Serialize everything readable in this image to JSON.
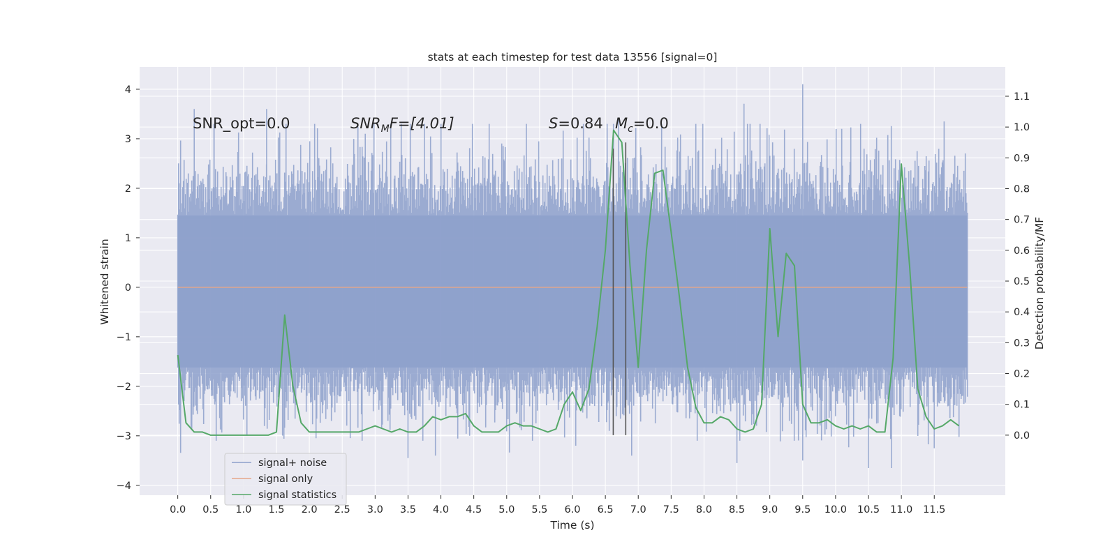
{
  "chart_data": {
    "type": "line",
    "title": "stats at each timestep for test data 13556 [signal=0]",
    "xlabel": "Time (s)",
    "ylabel": "Whitened strain",
    "ylabel_right": "Detection probability/MF",
    "xlim": [
      -0.58,
      12.58
    ],
    "ylim_left": [
      -4.2,
      4.45
    ],
    "ylim_right": [
      -0.195,
      1.195
    ],
    "x_ticks": [
      "0.0",
      "0.5",
      "1.0",
      "1.5",
      "2.0",
      "2.5",
      "3.0",
      "3.5",
      "4.0",
      "4.5",
      "5.0",
      "5.5",
      "6.0",
      "6.5",
      "7.0",
      "7.5",
      "8.0",
      "8.5",
      "9.0",
      "9.5",
      "10.0",
      "10.5",
      "11.0",
      "11.5"
    ],
    "y_ticks_left": [
      "4",
      "3",
      "2",
      "1",
      "0",
      "−1",
      "−2",
      "−3",
      "−4"
    ],
    "y_ticks_right": [
      "1.1",
      "1.0",
      "0.9",
      "0.8",
      "0.7",
      "0.6",
      "0.5",
      "0.4",
      "0.3",
      "0.2",
      "0.1",
      "0.0"
    ],
    "annotations": {
      "snr_opt": "SNR_opt=0.0",
      "snr_mf_pre": "SNR",
      "snr_mf_sub": "M",
      "snr_mf_post": "F=[4.01]",
      "s_label": "S",
      "s_value": "=0.84",
      "mc_label": "M",
      "mc_sub": "c",
      "mc_value": "=0.0"
    },
    "legend": {
      "position": "lower-left",
      "entries": [
        "signal+ noise",
        "signal only",
        "signal statistics"
      ]
    },
    "colors": {
      "noise": "#8da0cb",
      "signal_only": "#e5a68a",
      "statistics": "#55a868",
      "marker": "#555555",
      "background": "#eaeaf2",
      "grid": "#ffffff"
    },
    "series": [
      {
        "name": "signal+ noise",
        "axis": "left",
        "x_range": [
          0.0,
          12.0
        ],
        "typical_max": 1.45,
        "typical_min": -1.62,
        "notable_peaks": [
          {
            "x": 0.25,
            "y": 3.6
          },
          {
            "x": 0.55,
            "y": 3.3
          },
          {
            "x": 1.35,
            "y": 3.6
          },
          {
            "x": 2.85,
            "y": 3.1
          },
          {
            "x": 3.75,
            "y": 3.3
          },
          {
            "x": 5.3,
            "y": 3.3
          },
          {
            "x": 6.7,
            "y": 3.4
          },
          {
            "x": 8.7,
            "y": 3.3
          },
          {
            "x": 9.5,
            "y": 4.1
          },
          {
            "x": 11.65,
            "y": 3.35
          }
        ],
        "notable_troughs": [
          {
            "x": 3.5,
            "y": -3.45
          },
          {
            "x": 6.05,
            "y": -3.2
          },
          {
            "x": 6.9,
            "y": -3.4
          },
          {
            "x": 8.5,
            "y": -3.55
          },
          {
            "x": 9.5,
            "y": -3.5
          },
          {
            "x": 10.5,
            "y": -3.65
          },
          {
            "x": 10.85,
            "y": -3.65
          },
          {
            "x": 11.5,
            "y": -3.25
          }
        ]
      },
      {
        "name": "signal only",
        "axis": "left",
        "x": [
          0.0,
          12.0
        ],
        "values": [
          0.0,
          0.0
        ]
      },
      {
        "name": "signal statistics",
        "axis": "right",
        "x": [
          0.0,
          0.125,
          0.25,
          0.375,
          0.5,
          0.625,
          0.75,
          0.875,
          1.0,
          1.125,
          1.25,
          1.375,
          1.5,
          1.625,
          1.75,
          1.875,
          2.0,
          2.125,
          2.25,
          2.375,
          2.5,
          2.625,
          2.75,
          2.875,
          3.0,
          3.125,
          3.25,
          3.375,
          3.5,
          3.625,
          3.75,
          3.875,
          4.0,
          4.125,
          4.25,
          4.375,
          4.5,
          4.625,
          4.75,
          4.875,
          5.0,
          5.125,
          5.25,
          5.375,
          5.5,
          5.625,
          5.75,
          5.875,
          6.0,
          6.125,
          6.25,
          6.375,
          6.5,
          6.625,
          6.75,
          6.875,
          7.0,
          7.125,
          7.25,
          7.375,
          7.5,
          7.625,
          7.75,
          7.875,
          8.0,
          8.125,
          8.25,
          8.375,
          8.5,
          8.625,
          8.75,
          8.875,
          9.0,
          9.125,
          9.25,
          9.375,
          9.5,
          9.625,
          9.75,
          9.875,
          10.0,
          10.125,
          10.25,
          10.375,
          10.5,
          10.625,
          10.75,
          10.875,
          11.0,
          11.125,
          11.25,
          11.375,
          11.5,
          11.625,
          11.75,
          11.875
        ],
        "values": [
          0.26,
          0.04,
          0.01,
          0.01,
          0.0,
          0.0,
          0.0,
          0.0,
          0.0,
          0.0,
          0.0,
          0.0,
          0.01,
          0.39,
          0.16,
          0.04,
          0.01,
          0.01,
          0.01,
          0.01,
          0.01,
          0.01,
          0.01,
          0.02,
          0.03,
          0.02,
          0.01,
          0.02,
          0.01,
          0.01,
          0.03,
          0.06,
          0.05,
          0.06,
          0.06,
          0.07,
          0.03,
          0.01,
          0.01,
          0.01,
          0.03,
          0.04,
          0.03,
          0.03,
          0.02,
          0.01,
          0.02,
          0.1,
          0.14,
          0.08,
          0.15,
          0.35,
          0.6,
          0.99,
          0.95,
          0.55,
          0.22,
          0.6,
          0.85,
          0.86,
          0.66,
          0.45,
          0.22,
          0.09,
          0.04,
          0.04,
          0.06,
          0.05,
          0.02,
          0.01,
          0.02,
          0.1,
          0.67,
          0.32,
          0.59,
          0.55,
          0.1,
          0.04,
          0.04,
          0.05,
          0.03,
          0.02,
          0.03,
          0.02,
          0.03,
          0.01,
          0.01,
          0.25,
          0.88,
          0.55,
          0.15,
          0.06,
          0.02,
          0.03,
          0.05,
          0.03
        ]
      }
    ],
    "vertical_markers": [
      {
        "x": 6.62,
        "y_bottom": 0.0,
        "y_top": 0.93
      },
      {
        "x": 6.81,
        "y_bottom": 0.0,
        "y_top": 0.95
      }
    ]
  }
}
